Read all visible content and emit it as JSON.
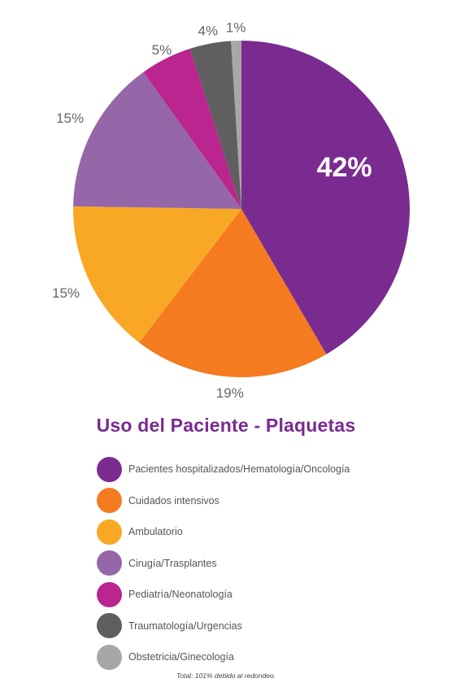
{
  "chart_data": {
    "type": "pie",
    "title": "Uso del Paciente - Plaquetas",
    "categories": [
      "Pacientes hospitalizados/Hematología/Oncología",
      "Cuidados intensivos",
      "Ambulatorio",
      "Cirugía/Trasplantes",
      "Pediatría/Neonatología",
      "Traumatología/Urgencias",
      "Obstetricia/Ginecología"
    ],
    "values": [
      42,
      19,
      15,
      15,
      5,
      4,
      1
    ],
    "labels": [
      "42%",
      "19%",
      "15%",
      "15%",
      "5%",
      "4%",
      "1%"
    ],
    "colors": [
      "#7a2b90",
      "#f47b20",
      "#f9a825",
      "#9566a8",
      "#bb2590",
      "#5f5f5f",
      "#a7a7a7"
    ],
    "legend_position": "bottom",
    "footnote": "Total: 101% debido al redondeo."
  }
}
